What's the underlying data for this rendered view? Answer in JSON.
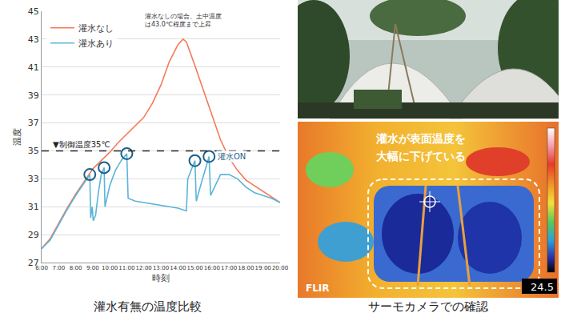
{
  "chart_data": {
    "type": "line",
    "caption": "灌水有無の温度比較",
    "x_label": "時刻",
    "y_label": "温度",
    "xlim": [
      6,
      20
    ],
    "xticks": [
      {
        "value": 6,
        "label": "6:00"
      },
      {
        "value": 7,
        "label": "7:00"
      },
      {
        "value": 8,
        "label": "8:00"
      },
      {
        "value": 9,
        "label": "9:00"
      },
      {
        "value": 10,
        "label": "10:00"
      },
      {
        "value": 11,
        "label": "11:00"
      },
      {
        "value": 12,
        "label": "12:00"
      },
      {
        "value": 13,
        "label": "13:00"
      },
      {
        "value": 14,
        "label": "14:00"
      },
      {
        "value": 15,
        "label": "15:00"
      },
      {
        "value": 16,
        "label": "16:00"
      },
      {
        "value": 17,
        "label": "17:00"
      },
      {
        "value": 18,
        "label": "18:00"
      },
      {
        "value": 19,
        "label": "19:00"
      },
      {
        "value": 20,
        "label": "20:00"
      }
    ],
    "ylim": [
      27,
      45
    ],
    "yticks": [
      27,
      29,
      31,
      33,
      35,
      37,
      39,
      41,
      43,
      45
    ],
    "grid": "y",
    "legend": "upper left",
    "series": [
      {
        "name": "灌水なし",
        "color": "#f47a5a",
        "x": [
          6,
          6.5,
          7,
          7.5,
          8,
          8.5,
          9,
          9.5,
          10,
          10.5,
          11,
          11.5,
          12,
          12.5,
          13,
          13.5,
          14,
          14.3,
          14.5,
          15,
          15.5,
          16,
          16.5,
          17,
          17.5,
          18,
          18.5,
          19,
          19.5,
          20
        ],
        "values": [
          28.0,
          28.7,
          29.8,
          30.9,
          31.9,
          32.8,
          33.7,
          34.3,
          34.9,
          35.6,
          36.2,
          36.8,
          37.4,
          38.4,
          39.7,
          41.4,
          42.6,
          43.0,
          42.8,
          41.1,
          39.3,
          37.5,
          35.8,
          34.5,
          33.6,
          32.9,
          32.5,
          32.1,
          31.7,
          31.3
        ]
      },
      {
        "name": "灌水あり",
        "color": "#5bb5d6",
        "x": [
          6,
          6.5,
          7,
          7.5,
          8,
          8.5,
          8.83,
          8.88,
          8.97,
          9.03,
          9.17,
          9.33,
          9.5,
          9.67,
          9.72,
          9.83,
          10,
          10.33,
          10.67,
          11,
          11.08,
          11.5,
          12,
          13,
          14,
          14.5,
          14.58,
          15,
          15.08,
          15.33,
          15.83,
          15.92,
          16.25,
          16.5,
          17,
          17.5,
          18,
          18.5,
          19,
          19.5,
          20
        ],
        "values": [
          28.0,
          28.6,
          29.7,
          30.8,
          31.8,
          32.7,
          33.3,
          30.2,
          31.0,
          30.0,
          30.4,
          32.0,
          33.3,
          33.8,
          31.0,
          31.6,
          32.5,
          33.6,
          34.3,
          34.8,
          31.6,
          31.4,
          31.3,
          31.1,
          30.9,
          30.7,
          33.0,
          34.3,
          31.4,
          32.5,
          34.6,
          31.8,
          32.6,
          33.3,
          33.3,
          33.0,
          32.4,
          32.0,
          31.8,
          31.6,
          31.3
        ]
      }
    ],
    "control_line": {
      "value": 35,
      "label": "▼制御温度35℃",
      "line_style": "dashed"
    },
    "irrigation_on": {
      "label": "灌水ON",
      "marker": "open circle",
      "color": "#1f5f8b",
      "x": [
        8.83,
        9.67,
        11,
        15,
        15.83
      ],
      "values": [
        33.3,
        33.8,
        34.8,
        34.3,
        34.6
      ]
    },
    "annotations": [
      {
        "text": "灌水なしの場合、土中温度は43.0℃程度まで上昇"
      }
    ]
  },
  "thermal_image": {
    "caption": "サーモカメラでの確認",
    "annotation": "灌水が表面温度を大幅に下げている",
    "logo": "FLIR",
    "reading": 24.5
  }
}
